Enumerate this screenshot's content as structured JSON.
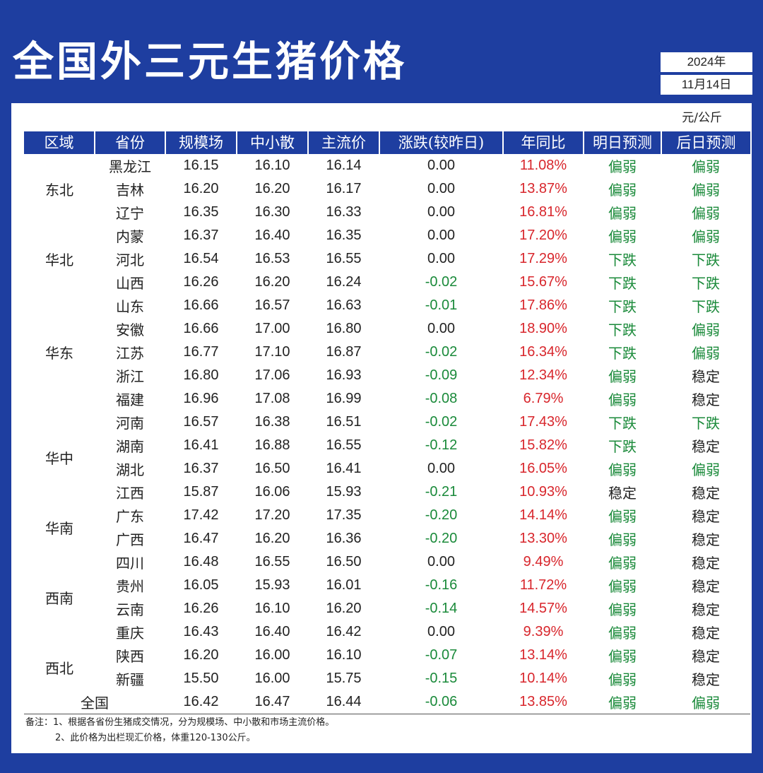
{
  "title": "全国外三元生猪价格",
  "date": {
    "year": "2024年",
    "day": "11月14日"
  },
  "unit": "元/公斤",
  "headers": [
    "区域",
    "省份",
    "规模场",
    "中小散",
    "主流价",
    "涨跌(较昨日)",
    "年同比",
    "明日预测",
    "后日预测"
  ],
  "regions": [
    {
      "name": "东北",
      "rows": [
        [
          "黑龙江",
          "16.15",
          "16.10",
          "16.14",
          "0.00",
          "11.08%",
          "偏弱",
          "偏弱"
        ],
        [
          "吉林",
          "16.20",
          "16.20",
          "16.17",
          "0.00",
          "13.87%",
          "偏弱",
          "偏弱"
        ],
        [
          "辽宁",
          "16.35",
          "16.30",
          "16.33",
          "0.00",
          "16.81%",
          "偏弱",
          "偏弱"
        ]
      ]
    },
    {
      "name": "华北",
      "rows": [
        [
          "内蒙",
          "16.37",
          "16.40",
          "16.35",
          "0.00",
          "17.20%",
          "偏弱",
          "偏弱"
        ],
        [
          "河北",
          "16.54",
          "16.53",
          "16.55",
          "0.00",
          "17.29%",
          "下跌",
          "下跌"
        ],
        [
          "山西",
          "16.26",
          "16.20",
          "16.24",
          "-0.02",
          "15.67%",
          "下跌",
          "下跌"
        ]
      ]
    },
    {
      "name": "华东",
      "rows": [
        [
          "山东",
          "16.66",
          "16.57",
          "16.63",
          "-0.01",
          "17.86%",
          "下跌",
          "下跌"
        ],
        [
          "安徽",
          "16.66",
          "17.00",
          "16.80",
          "0.00",
          "18.90%",
          "下跌",
          "偏弱"
        ],
        [
          "江苏",
          "16.77",
          "17.10",
          "16.87",
          "-0.02",
          "16.34%",
          "下跌",
          "偏弱"
        ],
        [
          "浙江",
          "16.80",
          "17.06",
          "16.93",
          "-0.09",
          "12.34%",
          "偏弱",
          "稳定"
        ],
        [
          "福建",
          "16.96",
          "17.08",
          "16.99",
          "-0.08",
          "6.79%",
          "偏弱",
          "稳定"
        ]
      ]
    },
    {
      "name": "华中",
      "rows": [
        [
          "河南",
          "16.57",
          "16.38",
          "16.51",
          "-0.02",
          "17.43%",
          "下跌",
          "下跌"
        ],
        [
          "湖南",
          "16.41",
          "16.88",
          "16.55",
          "-0.12",
          "15.82%",
          "下跌",
          "稳定"
        ],
        [
          "湖北",
          "16.37",
          "16.50",
          "16.41",
          "0.00",
          "16.05%",
          "偏弱",
          "偏弱"
        ],
        [
          "江西",
          "15.87",
          "16.06",
          "15.93",
          "-0.21",
          "10.93%",
          "稳定",
          "稳定"
        ]
      ]
    },
    {
      "name": "华南",
      "rows": [
        [
          "广东",
          "17.42",
          "17.20",
          "17.35",
          "-0.20",
          "14.14%",
          "偏弱",
          "稳定"
        ],
        [
          "广西",
          "16.47",
          "16.20",
          "16.36",
          "-0.20",
          "13.30%",
          "偏弱",
          "稳定"
        ]
      ]
    },
    {
      "name": "西南",
      "rows": [
        [
          "四川",
          "16.48",
          "16.55",
          "16.50",
          "0.00",
          "9.49%",
          "偏弱",
          "稳定"
        ],
        [
          "贵州",
          "16.05",
          "15.93",
          "16.01",
          "-0.16",
          "11.72%",
          "偏弱",
          "稳定"
        ],
        [
          "云南",
          "16.26",
          "16.10",
          "16.20",
          "-0.14",
          "14.57%",
          "偏弱",
          "稳定"
        ],
        [
          "重庆",
          "16.43",
          "16.40",
          "16.42",
          "0.00",
          "9.39%",
          "偏弱",
          "稳定"
        ]
      ]
    },
    {
      "name": "西北",
      "rows": [
        [
          "陕西",
          "16.20",
          "16.00",
          "16.10",
          "-0.07",
          "13.14%",
          "偏弱",
          "稳定"
        ],
        [
          "新疆",
          "15.50",
          "16.00",
          "15.75",
          "-0.15",
          "10.14%",
          "偏弱",
          "稳定"
        ]
      ]
    }
  ],
  "total": [
    "全国",
    "16.42",
    "16.47",
    "16.44",
    "-0.06",
    "13.85%",
    "偏弱",
    "偏弱"
  ],
  "colors": {
    "brand": "#1e3ea0",
    "down": "#1a8a3a",
    "yoy": "#d8262c"
  },
  "notes": [
    "备注：1、根据各省份生猪成交情况，分为规模场、中小散和市场主流价格。",
    "2、此价格为出栏现汇价格，体重120-130公斤。"
  ]
}
